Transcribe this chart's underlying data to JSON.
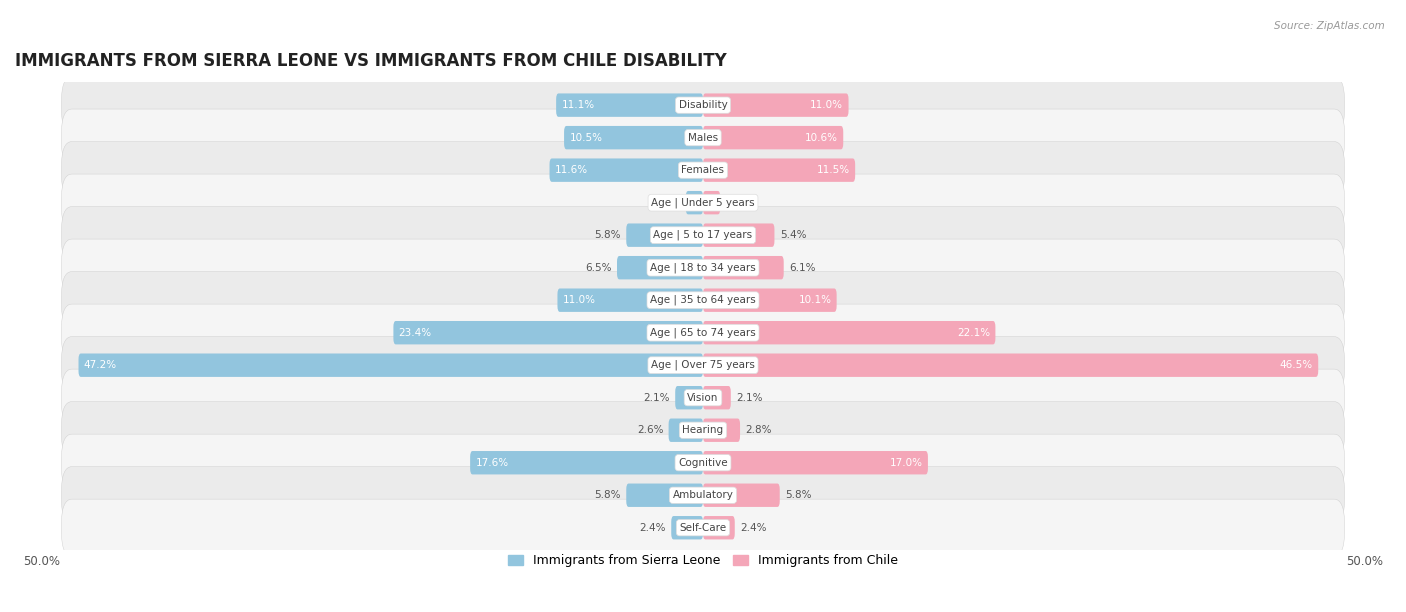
{
  "title": "IMMIGRANTS FROM SIERRA LEONE VS IMMIGRANTS FROM CHILE DISABILITY",
  "source": "Source: ZipAtlas.com",
  "categories": [
    "Disability",
    "Males",
    "Females",
    "Age | Under 5 years",
    "Age | 5 to 17 years",
    "Age | 18 to 34 years",
    "Age | 35 to 64 years",
    "Age | 65 to 74 years",
    "Age | Over 75 years",
    "Vision",
    "Hearing",
    "Cognitive",
    "Ambulatory",
    "Self-Care"
  ],
  "sierra_leone": [
    11.1,
    10.5,
    11.6,
    1.3,
    5.8,
    6.5,
    11.0,
    23.4,
    47.2,
    2.1,
    2.6,
    17.6,
    5.8,
    2.4
  ],
  "chile": [
    11.0,
    10.6,
    11.5,
    1.3,
    5.4,
    6.1,
    10.1,
    22.1,
    46.5,
    2.1,
    2.8,
    17.0,
    5.8,
    2.4
  ],
  "max_val": 50.0,
  "color_sierra": "#92c5de",
  "color_chile": "#f4a6b8",
  "color_sierra_dark": "#5b9ec9",
  "color_chile_dark": "#e87fa0",
  "bar_height": 0.72,
  "bg_row_even": "#ebebeb",
  "bg_row_odd": "#f5f5f5",
  "title_fontsize": 12,
  "value_fontsize": 7.5,
  "category_fontsize": 7.5
}
